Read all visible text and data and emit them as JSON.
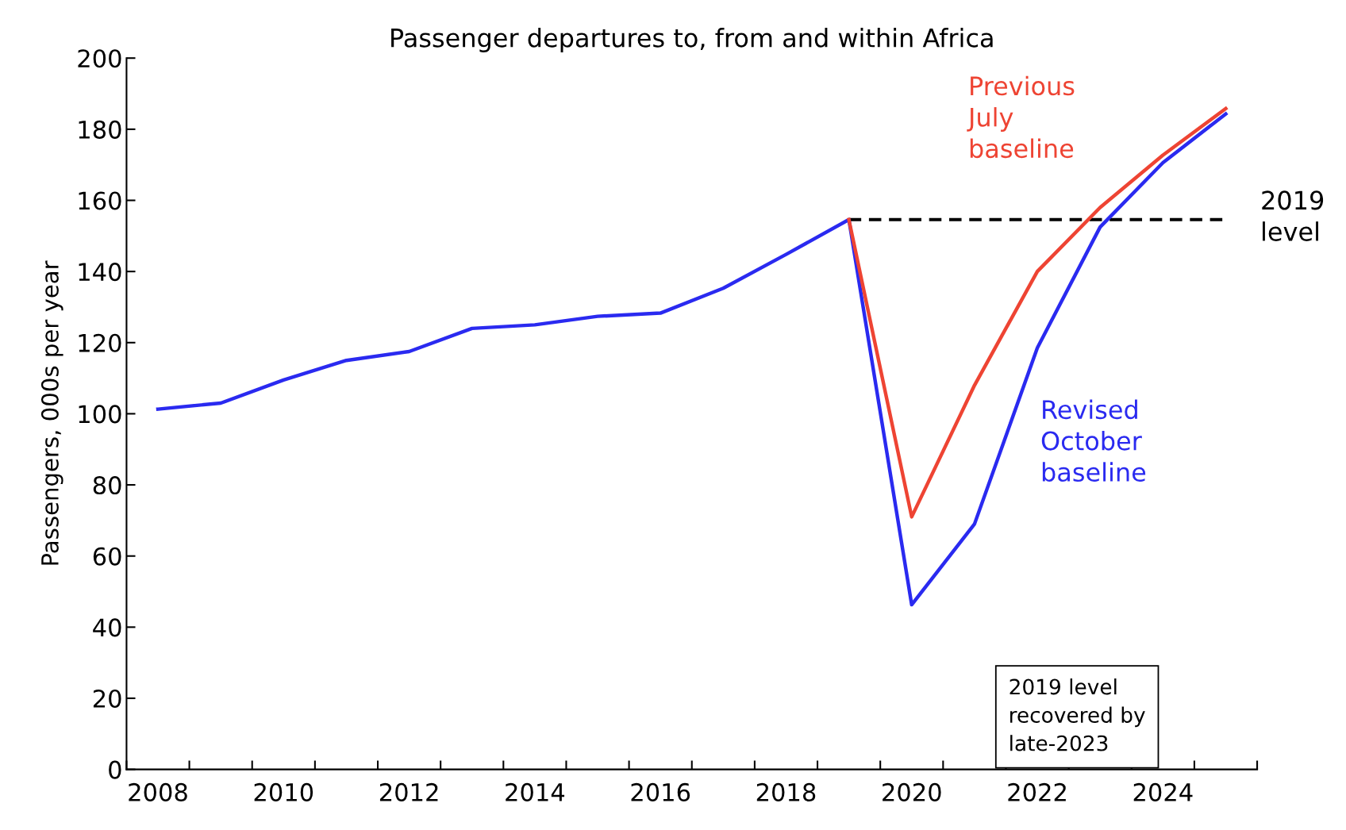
{
  "chart_data": {
    "type": "line",
    "title": "Passenger departures to, from and within Africa",
    "ylabel": "Passengers, 000s per year",
    "categories": [
      "2008",
      null,
      "2010",
      null,
      "2012",
      null,
      "2014",
      null,
      "2016",
      null,
      "2018",
      null,
      "2020",
      null,
      "2022",
      null,
      "2024",
      null
    ],
    "series": [
      {
        "name": "Previous July baseline",
        "color": "#ee4433",
        "values": [
          null,
          null,
          null,
          null,
          null,
          null,
          null,
          null,
          null,
          null,
          null,
          154.6,
          71,
          108,
          140,
          158,
          172.7,
          185.8
        ]
      },
      {
        "name": "Revised October baseline",
        "color": "#2a2af0",
        "values": [
          101.3,
          103,
          109.5,
          115,
          117.5,
          124,
          125,
          127.4,
          128.3,
          135.3,
          144.8,
          154.6,
          46.3,
          69,
          118.5,
          152.5,
          170.6,
          184.3
        ]
      },
      {
        "name": "2019 level",
        "color": "#000000",
        "line_style": "dashed",
        "values": [
          null,
          null,
          null,
          null,
          null,
          null,
          null,
          null,
          null,
          null,
          null,
          154.6,
          154.6,
          154.6,
          154.6,
          154.6,
          154.6,
          154.6
        ]
      }
    ],
    "ylim": [
      0,
      200
    ],
    "yticks": [
      0,
      20,
      40,
      60,
      80,
      100,
      120,
      140,
      160,
      180,
      200
    ],
    "grid": false,
    "legend": false,
    "marker": "none",
    "line_style": "solid",
    "annotations": [
      "2019 level recovered by late-2023"
    ]
  }
}
